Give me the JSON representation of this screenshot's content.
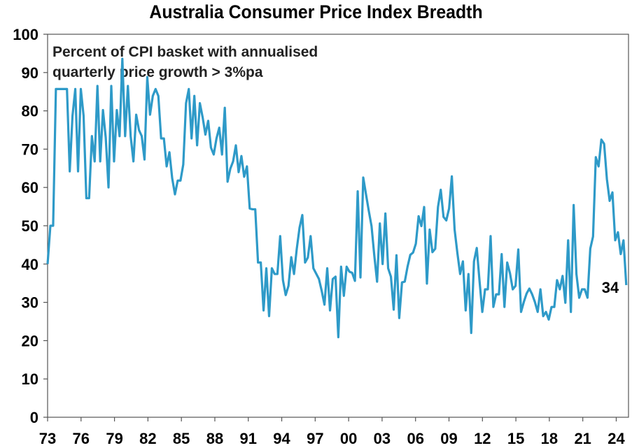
{
  "chart_data": {
    "type": "line",
    "title": "Australia Consumer Price Index Breadth",
    "annotation_lines": [
      "Percent of CPI basket with annualised",
      "quarterly price growth > 3%pa"
    ],
    "xlabel": "",
    "ylabel": "",
    "ylim": [
      0,
      100
    ],
    "yticks": [
      0,
      10,
      20,
      30,
      40,
      50,
      60,
      70,
      80,
      90,
      100
    ],
    "xlim": [
      1973.0,
      2025.1
    ],
    "xticks": [
      1973,
      1976,
      1979,
      1982,
      1985,
      1988,
      1991,
      1994,
      1997,
      2000,
      2003,
      2006,
      2009,
      2012,
      2015,
      2018,
      2021,
      2024
    ],
    "xtick_labels": [
      "73",
      "76",
      "79",
      "82",
      "85",
      "88",
      "91",
      "94",
      "97",
      "00",
      "03",
      "06",
      "09",
      "12",
      "15",
      "18",
      "21",
      "24"
    ],
    "grid": false,
    "legend": "none",
    "end_label": "34",
    "series": [
      {
        "name": "Percent of CPI basket with annualised quarterly price growth > 3%pa",
        "color": "#2E9AC8",
        "frequency": "quarterly",
        "x_start": 1973.0,
        "x_end": 2024.9,
        "values": [
          40,
          50,
          50,
          85.7,
          85.7,
          85.7,
          85.7,
          85.7,
          64.2,
          78.7,
          85.7,
          64.2,
          85.7,
          78.7,
          57.2,
          57.2,
          73.4,
          66.8,
          86.5,
          66.8,
          80.2,
          73,
          60,
          86.5,
          66.8,
          80.2,
          73.4,
          93.6,
          73.4,
          86.5,
          73.4,
          66.8,
          79,
          75,
          73.4,
          67.3,
          88.8,
          79,
          83.9,
          85.7,
          83.9,
          72.8,
          72.8,
          65.5,
          69.2,
          62.4,
          58.2,
          61.8,
          61.8,
          66,
          82,
          85.7,
          72.8,
          83.9,
          71,
          82,
          78.3,
          73.8,
          77.4,
          70.4,
          68.6,
          72.8,
          75.6,
          68.6,
          80.8,
          61.5,
          64.9,
          66.8,
          71,
          64,
          68.2,
          62.8,
          65.5,
          54.5,
          54.3,
          54.3,
          40.4,
          40.4,
          27.9,
          38.9,
          26.4,
          38.9,
          37.4,
          37.4,
          47.3,
          35.8,
          31.9,
          34.3,
          41.8,
          37.4,
          44,
          49.5,
          52.8,
          40.4,
          41.7,
          47.3,
          38.9,
          37.5,
          36.1,
          33,
          29.4,
          38.9,
          27.9,
          36.1,
          36.7,
          20.9,
          39.3,
          31.7,
          39.3,
          38,
          37.7,
          35.6,
          59,
          36.5,
          62.6,
          58.2,
          53.9,
          49.9,
          42.2,
          35.4,
          50.6,
          40,
          53.2,
          38.9,
          36.7,
          28.1,
          42.3,
          25.9,
          35.2,
          35.4,
          39.3,
          42.4,
          43,
          45.3,
          52.5,
          49.9,
          54.9,
          34.9,
          49,
          43.1,
          44,
          54.9,
          59.4,
          52.3,
          51.4,
          54.5,
          62.9,
          49,
          42.9,
          37.4,
          40.7,
          27.9,
          37.4,
          22,
          40.7,
          44.2,
          35.6,
          27.5,
          33.4,
          33.4,
          47.3,
          28.8,
          32.1,
          32.1,
          42.6,
          28.8,
          40.4,
          37.6,
          33.4,
          34.3,
          43.8,
          27.5,
          30.1,
          32.3,
          33.6,
          32.1,
          30.1,
          27.5,
          33.4,
          26.4,
          27.5,
          25.5,
          28.8,
          28.8,
          35.8,
          33.4,
          36.9,
          29.9,
          46.2,
          27.5,
          55.4,
          37.4,
          31.2,
          33.4,
          33.4,
          31.2,
          44,
          47.2,
          67.9,
          65.5,
          72.5,
          71.4,
          62.2,
          56.5,
          58.7,
          46.2,
          48.3,
          42.6,
          46.2,
          34.5
        ]
      }
    ]
  }
}
